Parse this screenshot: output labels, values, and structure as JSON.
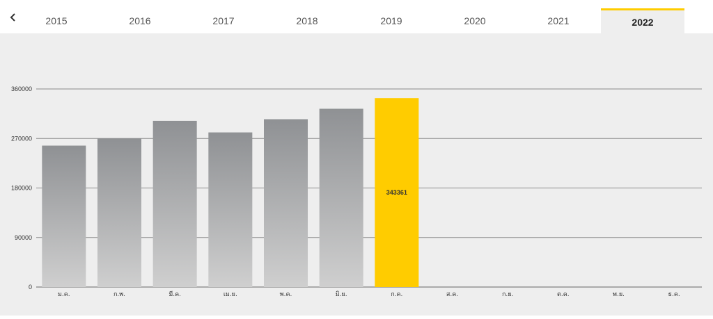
{
  "tabs": {
    "back_icon": "chevron-left-icon",
    "years": [
      "2015",
      "2016",
      "2017",
      "2018",
      "2019",
      "2020",
      "2021",
      "2022"
    ],
    "active": "2022",
    "accent": "#ffcc00"
  },
  "chart_data": {
    "type": "bar",
    "categories": [
      "ม.ค.",
      "ก.พ.",
      "มี.ค.",
      "เม.ย.",
      "พ.ค.",
      "มิ.ย.",
      "ก.ค.",
      "ส.ค.",
      "ก.ย.",
      "ต.ค.",
      "พ.ย.",
      "ธ.ค."
    ],
    "values": [
      257000,
      270000,
      302000,
      281000,
      305000,
      324000,
      343361,
      null,
      null,
      null,
      null,
      null
    ],
    "highlight_index": 6,
    "highlight_label": "343361",
    "yticks": [
      "0",
      "90000",
      "180000",
      "270000",
      "360000"
    ],
    "ylim": [
      0,
      360000
    ],
    "bar_color_top": "#8f9194",
    "bar_color_bottom": "#cfcfcf",
    "highlight_color": "#ffcc00",
    "grid": true
  }
}
